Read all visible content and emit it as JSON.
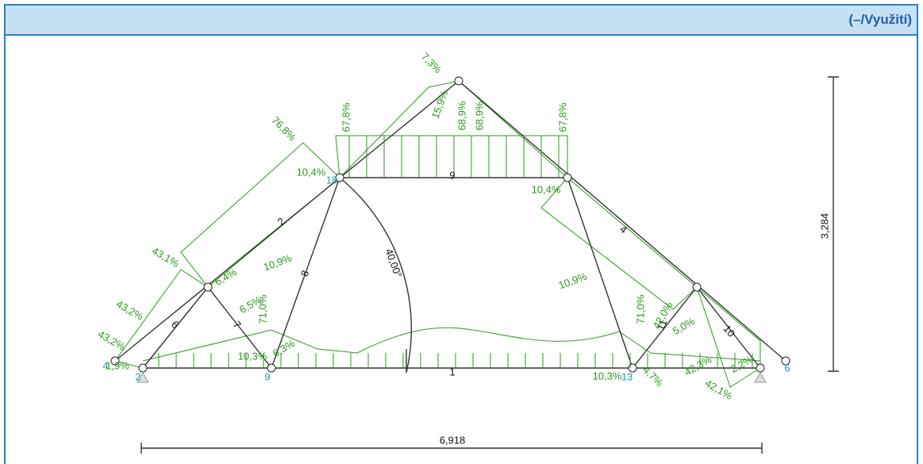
{
  "header": {
    "title": "(–/Využití)"
  },
  "dimensions": {
    "width": "6,918",
    "height": "3,284",
    "angle": "40,00°"
  },
  "members": [
    "1",
    "2",
    "4",
    "6",
    "7",
    "8",
    "9",
    "10",
    "11"
  ],
  "nodes": [
    "2",
    "4",
    "6",
    "9",
    "13",
    "18"
  ],
  "utilization": [
    "7,3%",
    "15,9%",
    "68,9%",
    "68,9%",
    "67,8%",
    "67,8%",
    "76,8%",
    "10,4%",
    "10,4%",
    "43,1%",
    "6,4%",
    "43,2%",
    "43,2%",
    "1,9%",
    "6,5%",
    "71,0%",
    "10,9%",
    "10,3%",
    "6,3%",
    "10,9%",
    "71,0%",
    "42,0%",
    "5,0%",
    "10,3%",
    "4,7%",
    "42,3%",
    "42,1%",
    "2,2%"
  ]
}
